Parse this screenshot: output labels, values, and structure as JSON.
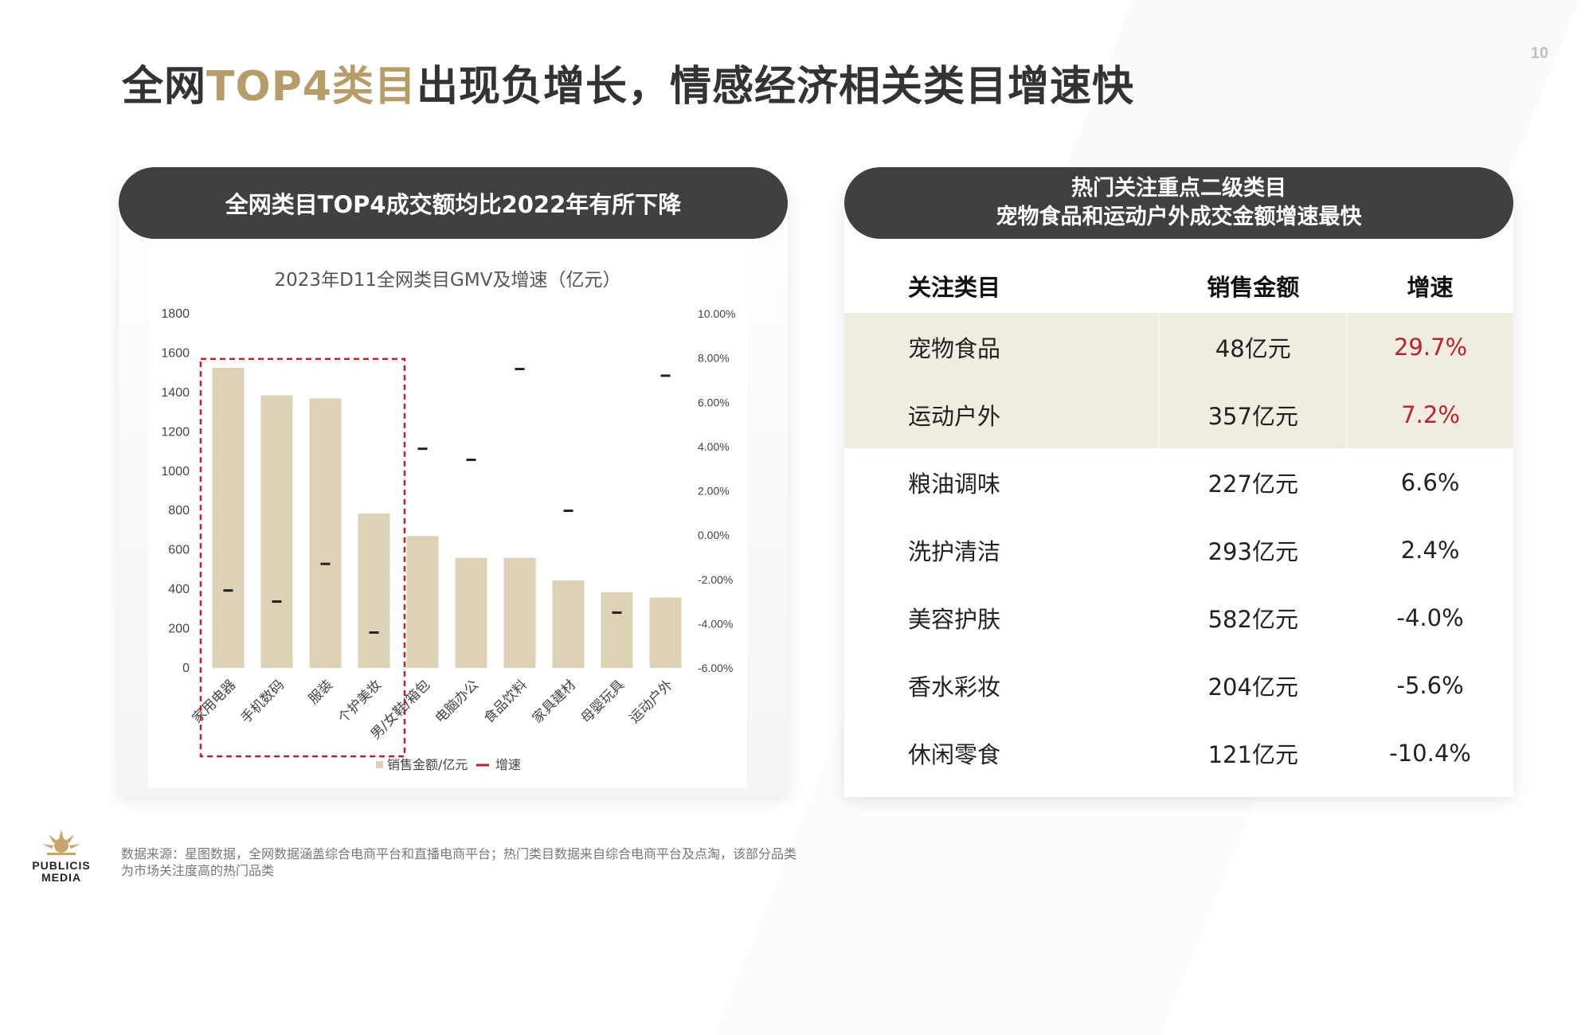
{
  "page_number": "10",
  "title": {
    "part1": "全网",
    "accent": "TOP4类目",
    "part2": "出现负增长，情感经济相关类目增速快"
  },
  "left_panel": {
    "header": "全网类目TOP4成交额均比2022年有所下降"
  },
  "right_panel": {
    "header_line1": "热门关注重点二级类目",
    "header_line2": "宠物食品和运动户外成交金额增速最快",
    "columns": [
      "关注类目",
      "销售金额",
      "增速"
    ],
    "rows": [
      {
        "name": "宠物食品",
        "amount": "48亿元",
        "growth": "29.7%",
        "highlight": true,
        "red": true
      },
      {
        "name": "运动户外",
        "amount": "357亿元",
        "growth": "7.2%",
        "highlight": true,
        "red": true
      },
      {
        "name": "粮油调味",
        "amount": "227亿元",
        "growth": "6.6%",
        "highlight": false,
        "red": false
      },
      {
        "name": "洗护清洁",
        "amount": "293亿元",
        "growth": "2.4%",
        "highlight": false,
        "red": false
      },
      {
        "name": "美容护肤",
        "amount": "582亿元",
        "growth": "-4.0%",
        "highlight": false,
        "red": false
      },
      {
        "name": "香水彩妆",
        "amount": "204亿元",
        "growth": "-5.6%",
        "highlight": false,
        "red": false
      },
      {
        "name": "休闲零食",
        "amount": "121亿元",
        "growth": "-10.4%",
        "highlight": false,
        "red": false
      }
    ]
  },
  "chart_data": {
    "type": "bar",
    "title": "2023年D11全网类目GMV及增速（亿元）",
    "categories": [
      "家用电器",
      "手机数码",
      "服装",
      "个护美妆",
      "男/女鞋/箱包",
      "电脑办公",
      "食品饮料",
      "家具建材",
      "母婴玩具",
      "运动户外"
    ],
    "series": [
      {
        "name": "销售金额/亿元",
        "axis": "left",
        "kind": "bar",
        "color": "#ddd1b6",
        "values": [
          1525,
          1385,
          1370,
          785,
          670,
          560,
          560,
          445,
          385,
          358
        ]
      },
      {
        "name": "增速",
        "axis": "right",
        "kind": "marker",
        "color": "#222222",
        "values": [
          -2.5,
          -3.0,
          -1.3,
          -4.4,
          3.9,
          3.4,
          7.5,
          1.1,
          -3.5,
          7.2
        ]
      }
    ],
    "left_axis": {
      "min": 0,
      "max": 1800,
      "ticks": [
        "0",
        "200",
        "400",
        "600",
        "800",
        "1000",
        "1200",
        "1400",
        "1600",
        "1800"
      ]
    },
    "right_axis": {
      "min": -6,
      "max": 10,
      "ticks": [
        "-6.00%",
        "-4.00%",
        "-2.00%",
        "0.00%",
        "2.00%",
        "4.00%",
        "6.00%",
        "8.00%",
        "10.00%"
      ]
    },
    "highlight_categories": [
      "家用电器",
      "手机数码",
      "服装",
      "个护美妆"
    ],
    "highlight_color": "#b8242b",
    "legend": [
      "销售金额/亿元",
      "增速"
    ],
    "legend_position": "bottom"
  },
  "footer": {
    "note": "数据来源：星图数据，全网数据涵盖综合电商平台和直播电商平台；热门类目数据来自综合电商平台及点淘，该部分品类为市场关注度高的热门品类",
    "logo_line1": "PUBLICIS",
    "logo_line2": "MEDIA"
  }
}
